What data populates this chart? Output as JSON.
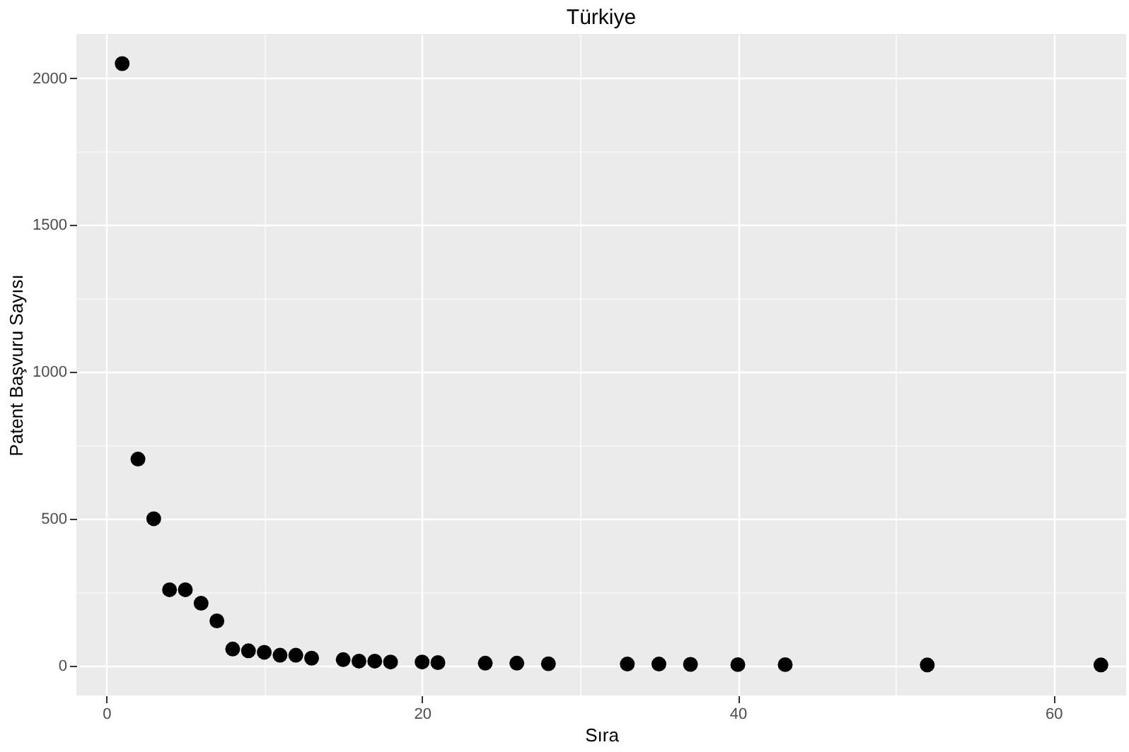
{
  "chart_data": {
    "type": "scatter",
    "title": "Türkiye",
    "xlabel": "Sıra",
    "ylabel": "Patent Başvuru Sayısı",
    "x": [
      1,
      2,
      3,
      4,
      5,
      6,
      7,
      8,
      9,
      10,
      11,
      12,
      13,
      15,
      16,
      17,
      18,
      20,
      21,
      24,
      26,
      28,
      33,
      35,
      37,
      40,
      43,
      52,
      63
    ],
    "series": [
      {
        "color": "#000000",
        "values": [
          2050,
          703,
          500,
          258,
          258,
          212,
          152,
          56,
          50,
          45,
          35,
          35,
          25,
          20,
          15,
          15,
          12,
          12,
          10,
          8,
          8,
          6,
          5,
          5,
          4,
          3,
          3,
          2,
          2
        ]
      }
    ],
    "xlim": [
      -1.9,
      64.6
    ],
    "ylim": [
      -102,
      2151
    ],
    "xticks": [
      0,
      20,
      40,
      60
    ],
    "yticks": [
      0,
      500,
      1000,
      1500,
      2000
    ],
    "grid": true,
    "marker": "circle",
    "legend": false
  }
}
